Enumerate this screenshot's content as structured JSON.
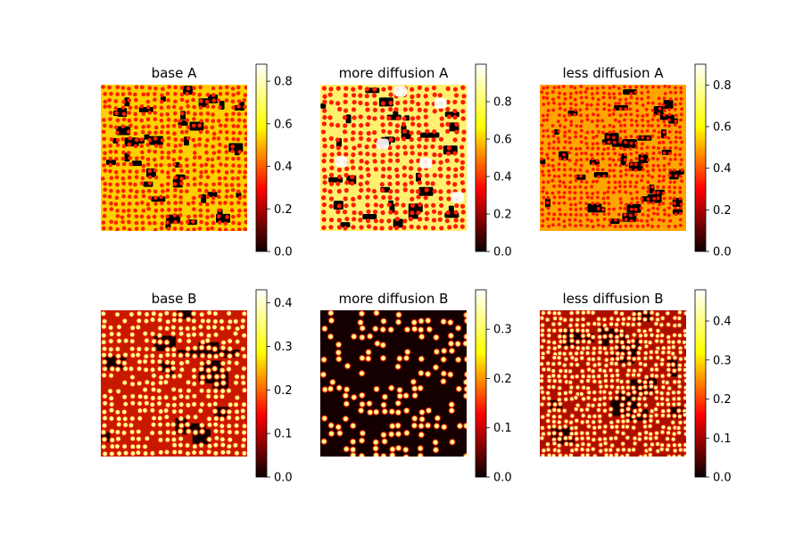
{
  "figure": {
    "colormap": "hot",
    "colormap_stops": [
      "#0b0000",
      "#ff0000",
      "#ffff00",
      "#ffffff"
    ]
  },
  "chart_data": [
    {
      "type": "heatmap",
      "title": "base A",
      "pattern": "spots",
      "dot_color": "#ff2000",
      "background": "#ffd000",
      "dark_patch_color": "#000000",
      "colorbar": {
        "range": [
          0,
          0.88
        ],
        "ticks": [
          0.0,
          0.2,
          0.4,
          0.6,
          0.8
        ],
        "tick_labels": [
          "0.0",
          "0.2",
          "0.4",
          "0.6",
          "0.8"
        ]
      }
    },
    {
      "type": "heatmap",
      "title": "more diffusion A",
      "pattern": "spots",
      "dot_color": "#ff1a00",
      "background": "#fff070",
      "dark_patch_color": "#000000",
      "colorbar": {
        "range": [
          0,
          1.0
        ],
        "ticks": [
          0.0,
          0.2,
          0.4,
          0.6,
          0.8
        ],
        "tick_labels": [
          "0.0",
          "0.2",
          "0.4",
          "0.6",
          "0.8"
        ]
      }
    },
    {
      "type": "heatmap",
      "title": "less diffusion A",
      "pattern": "spots",
      "dot_color": "#ff1500",
      "background": "#ffa500",
      "dark_patch_color": "#000000",
      "colorbar": {
        "range": [
          0,
          0.9
        ],
        "ticks": [
          0.0,
          0.2,
          0.4,
          0.6,
          0.8
        ],
        "tick_labels": [
          "0.0",
          "0.2",
          "0.4",
          "0.6",
          "0.8"
        ]
      }
    },
    {
      "type": "heatmap",
      "title": "base B",
      "pattern": "spots",
      "dot_color": "#ffff90",
      "background": "#c81800",
      "dark_patch_color": "#120000",
      "colorbar": {
        "range": [
          0,
          0.43
        ],
        "ticks": [
          0.0,
          0.1,
          0.2,
          0.3,
          0.4
        ],
        "tick_labels": [
          "0.0",
          "0.1",
          "0.2",
          "0.3",
          "0.4"
        ]
      }
    },
    {
      "type": "heatmap",
      "title": "more diffusion B",
      "pattern": "sparse spots",
      "dot_color": "#ffff90",
      "background": "#c81800",
      "dark_patch_color": "#140000",
      "colorbar": {
        "range": [
          0,
          0.38
        ],
        "ticks": [
          0.0,
          0.1,
          0.2,
          0.3
        ],
        "tick_labels": [
          "0.0",
          "0.1",
          "0.2",
          "0.3"
        ]
      }
    },
    {
      "type": "heatmap",
      "title": "less diffusion B",
      "pattern": "spots",
      "dot_color": "#ffffa0",
      "background": "#aa0f00",
      "dark_patch_color": "#120000",
      "colorbar": {
        "range": [
          0,
          0.48
        ],
        "ticks": [
          0.0,
          0.1,
          0.2,
          0.3,
          0.4
        ],
        "tick_labels": [
          "0.0",
          "0.1",
          "0.2",
          "0.3",
          "0.4"
        ]
      }
    }
  ]
}
